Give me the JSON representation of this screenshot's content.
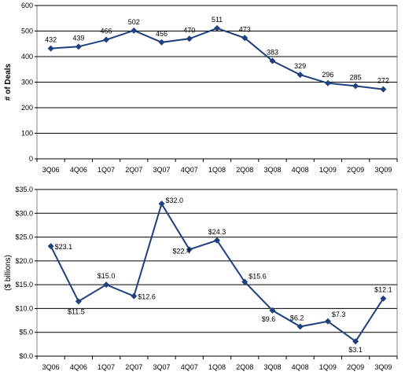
{
  "chart_data": [
    {
      "type": "line",
      "title": "",
      "xlabel": "",
      "ylabel": "# of Deals",
      "ylim": [
        0,
        600
      ],
      "yticks": [
        0,
        100,
        200,
        300,
        400,
        500,
        600
      ],
      "ytick_labels": [
        "0",
        "100",
        "200",
        "300",
        "400",
        "500",
        "600"
      ],
      "grid": true,
      "categories": [
        "3Q06",
        "4Q06",
        "1Q07",
        "2Q07",
        "3Q07",
        "4Q07",
        "1Q08",
        "2Q08",
        "3Q08",
        "4Q08",
        "1Q09",
        "2Q09",
        "3Q09"
      ],
      "values": [
        432,
        439,
        466,
        502,
        456,
        470,
        511,
        473,
        383,
        329,
        296,
        285,
        272
      ],
      "data_labels": [
        "432",
        "439",
        "466",
        "502",
        "456",
        "470",
        "511",
        "473",
        "383",
        "329",
        "296",
        "285",
        "272"
      ],
      "line_color": "#1f3f7f"
    },
    {
      "type": "line",
      "title": "",
      "xlabel": "",
      "ylabel": "($ billions)",
      "ylim": [
        0,
        35
      ],
      "yticks": [
        0,
        5,
        10,
        15,
        20,
        25,
        30,
        35
      ],
      "ytick_labels": [
        "$0.0",
        "$5.0",
        "$10.0",
        "$15.0",
        "$20.0",
        "$25.0",
        "$30.0",
        "$35.0"
      ],
      "grid": true,
      "categories": [
        "3Q06",
        "4Q06",
        "1Q07",
        "2Q07",
        "3Q07",
        "4Q07",
        "1Q08",
        "2Q08",
        "3Q08",
        "4Q08",
        "1Q09",
        "2Q09",
        "3Q09"
      ],
      "values": [
        23.1,
        11.5,
        15.0,
        12.6,
        32.0,
        22.4,
        24.3,
        15.6,
        9.6,
        6.2,
        7.3,
        3.1,
        12.1
      ],
      "data_labels": [
        "$23.1",
        "$11.5",
        "$15.0",
        "$12.6",
        "$32.0",
        "$22.4",
        "$24.3",
        "$15.6",
        "$9.6",
        "$6.2",
        "$7.3",
        "$3.1",
        "$12.1"
      ],
      "line_color": "#1f3f7f"
    }
  ]
}
